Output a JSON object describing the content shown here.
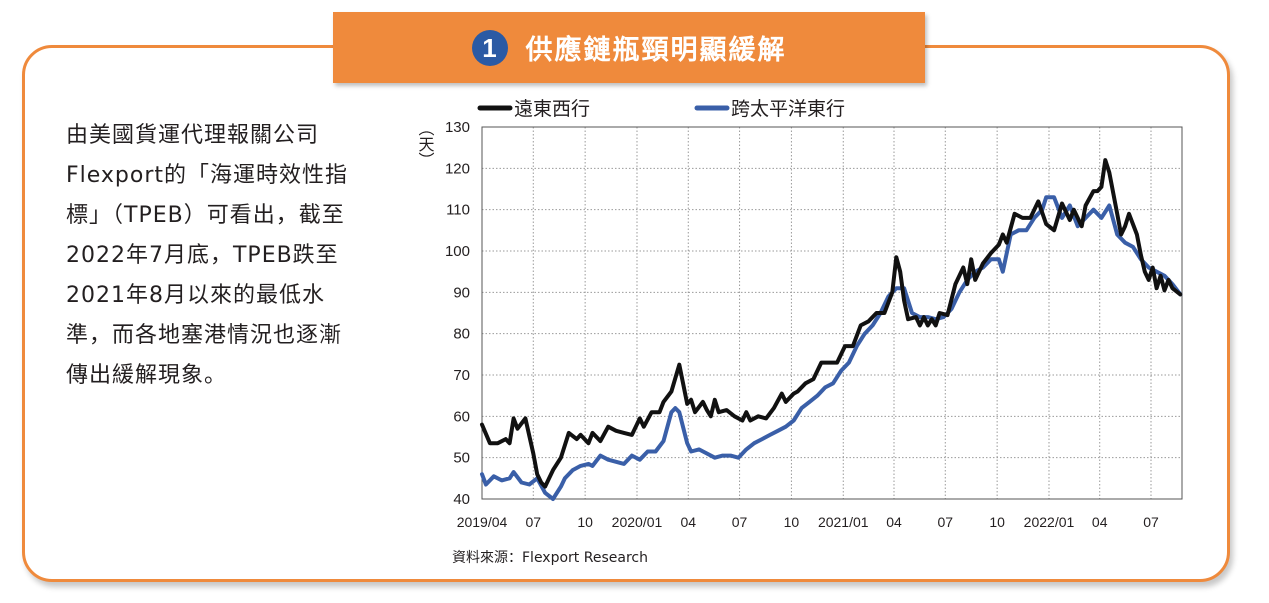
{
  "header": {
    "number": "1",
    "title": "供應鏈瓶頸明顯緩解"
  },
  "article": {
    "text": "由美國貨運代理報關公司Flexport的「海運時效性指標」（TPEB）可看出，截至2022年7月底，TPEB跌至2021年8月以來的最低水準，而各地塞港情況也逐漸傳出緩解現象。"
  },
  "source": "資料來源：Flexport Research",
  "colors": {
    "frame": "#ef8a3c",
    "badge": "#2b5aa4",
    "series_far_east_west": "#111111",
    "series_transpacific_east": "#3a5fa8"
  },
  "chart_data": {
    "type": "line",
    "ylabel": "（天）",
    "ylim": [
      40,
      130
    ],
    "yticks": [
      40,
      50,
      60,
      70,
      80,
      90,
      100,
      110,
      120,
      130
    ],
    "x_range": [
      "2019-04-01",
      "2022-08-25"
    ],
    "x_ticks": [
      {
        "date": "2019-04-01",
        "label": "2019/04"
      },
      {
        "date": "2019-07-01",
        "label": "07"
      },
      {
        "date": "2019-10-01",
        "label": "10"
      },
      {
        "date": "2020-01-01",
        "label": "2020/01"
      },
      {
        "date": "2020-04-01",
        "label": "04"
      },
      {
        "date": "2020-07-01",
        "label": "07"
      },
      {
        "date": "2020-10-01",
        "label": "10"
      },
      {
        "date": "2021-01-01",
        "label": "2021/01"
      },
      {
        "date": "2021-04-01",
        "label": "04"
      },
      {
        "date": "2021-07-01",
        "label": "07"
      },
      {
        "date": "2021-10-01",
        "label": "10"
      },
      {
        "date": "2022-01-01",
        "label": "2022/01"
      },
      {
        "date": "2022-04-01",
        "label": "04"
      },
      {
        "date": "2022-07-01",
        "label": "07"
      }
    ],
    "grid": true,
    "legend_position": "top",
    "series": [
      {
        "name": "遠東西行",
        "color": "#111111",
        "points": [
          [
            "2019-04-01",
            58
          ],
          [
            "2019-04-15",
            53.5
          ],
          [
            "2019-04-29",
            53.5
          ],
          [
            "2019-05-13",
            54.5
          ],
          [
            "2019-05-20",
            53.5
          ],
          [
            "2019-05-27",
            59.5
          ],
          [
            "2019-06-03",
            57
          ],
          [
            "2019-06-17",
            59.5
          ],
          [
            "2019-07-01",
            51
          ],
          [
            "2019-07-08",
            46
          ],
          [
            "2019-07-15",
            44
          ],
          [
            "2019-07-22",
            43
          ],
          [
            "2019-08-05",
            47
          ],
          [
            "2019-08-19",
            50
          ],
          [
            "2019-09-02",
            56
          ],
          [
            "2019-09-16",
            54.5
          ],
          [
            "2019-09-23",
            55.5
          ],
          [
            "2019-10-07",
            53.5
          ],
          [
            "2019-10-14",
            56
          ],
          [
            "2019-10-28",
            54
          ],
          [
            "2019-11-11",
            57.5
          ],
          [
            "2019-11-25",
            56.5
          ],
          [
            "2019-12-09",
            56
          ],
          [
            "2019-12-23",
            55.5
          ],
          [
            "2020-01-06",
            59.5
          ],
          [
            "2020-01-13",
            57.5
          ],
          [
            "2020-01-27",
            61
          ],
          [
            "2020-02-10",
            61
          ],
          [
            "2020-02-17",
            63.5
          ],
          [
            "2020-03-02",
            66
          ],
          [
            "2020-03-16",
            72.5
          ],
          [
            "2020-03-30",
            63
          ],
          [
            "2020-04-06",
            64
          ],
          [
            "2020-04-13",
            61
          ],
          [
            "2020-04-27",
            63.5
          ],
          [
            "2020-05-04",
            61.5
          ],
          [
            "2020-05-11",
            60
          ],
          [
            "2020-05-18",
            64
          ],
          [
            "2020-05-25",
            61
          ],
          [
            "2020-06-08",
            61.5
          ],
          [
            "2020-06-22",
            60
          ],
          [
            "2020-07-06",
            59
          ],
          [
            "2020-07-13",
            61
          ],
          [
            "2020-07-20",
            59
          ],
          [
            "2020-08-03",
            60
          ],
          [
            "2020-08-17",
            59.5
          ],
          [
            "2020-08-31",
            62
          ],
          [
            "2020-09-14",
            65.5
          ],
          [
            "2020-09-21",
            63.5
          ],
          [
            "2020-10-05",
            65.5
          ],
          [
            "2020-10-12",
            66
          ],
          [
            "2020-10-26",
            68
          ],
          [
            "2020-11-09",
            69
          ],
          [
            "2020-11-23",
            73
          ],
          [
            "2020-12-07",
            73
          ],
          [
            "2020-12-21",
            73
          ],
          [
            "2021-01-04",
            77
          ],
          [
            "2021-01-18",
            77
          ],
          [
            "2021-02-01",
            82
          ],
          [
            "2021-02-15",
            83
          ],
          [
            "2021-03-01",
            85
          ],
          [
            "2021-03-15",
            85
          ],
          [
            "2021-03-29",
            90
          ],
          [
            "2021-04-05",
            98.5
          ],
          [
            "2021-04-12",
            95
          ],
          [
            "2021-04-19",
            88
          ],
          [
            "2021-04-26",
            83.5
          ],
          [
            "2021-05-10",
            84
          ],
          [
            "2021-05-17",
            82
          ],
          [
            "2021-05-24",
            84
          ],
          [
            "2021-05-31",
            82
          ],
          [
            "2021-06-07",
            83.5
          ],
          [
            "2021-06-14",
            82
          ],
          [
            "2021-06-21",
            85
          ],
          [
            "2021-07-05",
            84.5
          ],
          [
            "2021-07-19",
            92
          ],
          [
            "2021-08-02",
            96
          ],
          [
            "2021-08-09",
            92
          ],
          [
            "2021-08-16",
            98
          ],
          [
            "2021-08-23",
            93
          ],
          [
            "2021-09-06",
            97
          ],
          [
            "2021-09-20",
            99.5
          ],
          [
            "2021-10-04",
            101.5
          ],
          [
            "2021-10-11",
            104
          ],
          [
            "2021-10-18",
            102
          ],
          [
            "2021-11-01",
            109
          ],
          [
            "2021-11-15",
            108
          ],
          [
            "2021-11-29",
            108
          ],
          [
            "2021-12-13",
            112
          ],
          [
            "2021-12-27",
            106.5
          ],
          [
            "2022-01-10",
            105
          ],
          [
            "2022-01-24",
            111.5
          ],
          [
            "2022-02-07",
            107.5
          ],
          [
            "2022-02-14",
            110
          ],
          [
            "2022-02-28",
            106
          ],
          [
            "2022-03-07",
            111
          ],
          [
            "2022-03-21",
            114.5
          ],
          [
            "2022-03-28",
            114.5
          ],
          [
            "2022-04-04",
            115.5
          ],
          [
            "2022-04-11",
            122
          ],
          [
            "2022-04-18",
            119
          ],
          [
            "2022-05-02",
            109
          ],
          [
            "2022-05-09",
            104
          ],
          [
            "2022-05-16",
            106
          ],
          [
            "2022-05-23",
            109
          ],
          [
            "2022-06-06",
            104
          ],
          [
            "2022-06-13",
            99
          ],
          [
            "2022-06-20",
            95
          ],
          [
            "2022-06-27",
            93
          ],
          [
            "2022-07-04",
            96
          ],
          [
            "2022-07-11",
            91
          ],
          [
            "2022-07-18",
            94
          ],
          [
            "2022-07-25",
            90.5
          ],
          [
            "2022-08-01",
            93
          ],
          [
            "2022-08-08",
            91
          ],
          [
            "2022-08-22",
            89.5
          ]
        ]
      },
      {
        "name": "跨太平洋東行",
        "color": "#3a5fa8",
        "points": [
          [
            "2019-04-01",
            46
          ],
          [
            "2019-04-08",
            43.5
          ],
          [
            "2019-04-22",
            45.5
          ],
          [
            "2019-05-06",
            44.5
          ],
          [
            "2019-05-20",
            45
          ],
          [
            "2019-05-27",
            46.5
          ],
          [
            "2019-06-10",
            44
          ],
          [
            "2019-06-24",
            43.5
          ],
          [
            "2019-07-08",
            45
          ],
          [
            "2019-07-22",
            41.5
          ],
          [
            "2019-08-05",
            40
          ],
          [
            "2019-08-19",
            43
          ],
          [
            "2019-08-26",
            45
          ],
          [
            "2019-09-09",
            47
          ],
          [
            "2019-09-23",
            48
          ],
          [
            "2019-10-07",
            48.5
          ],
          [
            "2019-10-14",
            48
          ],
          [
            "2019-10-28",
            50.5
          ],
          [
            "2019-11-11",
            49.5
          ],
          [
            "2019-11-25",
            49
          ],
          [
            "2019-12-09",
            48.5
          ],
          [
            "2019-12-23",
            50.5
          ],
          [
            "2020-01-06",
            49.5
          ],
          [
            "2020-01-20",
            51.5
          ],
          [
            "2020-02-03",
            51.5
          ],
          [
            "2020-02-17",
            54
          ],
          [
            "2020-03-02",
            61
          ],
          [
            "2020-03-09",
            62
          ],
          [
            "2020-03-16",
            61
          ],
          [
            "2020-03-30",
            53.5
          ],
          [
            "2020-04-06",
            51.5
          ],
          [
            "2020-04-20",
            52
          ],
          [
            "2020-05-04",
            51
          ],
          [
            "2020-05-18",
            50
          ],
          [
            "2020-06-01",
            50.5
          ],
          [
            "2020-06-15",
            50.5
          ],
          [
            "2020-06-29",
            50
          ],
          [
            "2020-07-13",
            52
          ],
          [
            "2020-07-27",
            53.5
          ],
          [
            "2020-08-10",
            54.5
          ],
          [
            "2020-08-24",
            55.5
          ],
          [
            "2020-09-07",
            56.5
          ],
          [
            "2020-09-21",
            57.5
          ],
          [
            "2020-10-05",
            59
          ],
          [
            "2020-10-19",
            62
          ],
          [
            "2020-11-02",
            63.5
          ],
          [
            "2020-11-16",
            65
          ],
          [
            "2020-11-30",
            67
          ],
          [
            "2020-12-14",
            68
          ],
          [
            "2020-12-28",
            71
          ],
          [
            "2021-01-11",
            73
          ],
          [
            "2021-01-25",
            77
          ],
          [
            "2021-02-08",
            80
          ],
          [
            "2021-02-22",
            82
          ],
          [
            "2021-03-08",
            85
          ],
          [
            "2021-03-22",
            89
          ],
          [
            "2021-04-05",
            91
          ],
          [
            "2021-04-19",
            91
          ],
          [
            "2021-05-03",
            85
          ],
          [
            "2021-05-17",
            84
          ],
          [
            "2021-05-31",
            84
          ],
          [
            "2021-06-14",
            83.5
          ],
          [
            "2021-06-28",
            84
          ],
          [
            "2021-07-12",
            86
          ],
          [
            "2021-07-26",
            90
          ],
          [
            "2021-08-09",
            93
          ],
          [
            "2021-08-23",
            95
          ],
          [
            "2021-09-06",
            96
          ],
          [
            "2021-09-20",
            98
          ],
          [
            "2021-10-04",
            98
          ],
          [
            "2021-10-11",
            95
          ],
          [
            "2021-10-25",
            104
          ],
          [
            "2021-11-08",
            105
          ],
          [
            "2021-11-22",
            105
          ],
          [
            "2021-12-06",
            108
          ],
          [
            "2021-12-20",
            110
          ],
          [
            "2021-12-27",
            113
          ],
          [
            "2022-01-10",
            113
          ],
          [
            "2022-01-24",
            108
          ],
          [
            "2022-02-07",
            111
          ],
          [
            "2022-02-21",
            106
          ],
          [
            "2022-03-07",
            108
          ],
          [
            "2022-03-21",
            110
          ],
          [
            "2022-04-04",
            108
          ],
          [
            "2022-04-18",
            111
          ],
          [
            "2022-05-02",
            104
          ],
          [
            "2022-05-16",
            102
          ],
          [
            "2022-05-30",
            101
          ],
          [
            "2022-06-13",
            98
          ],
          [
            "2022-06-27",
            96
          ],
          [
            "2022-07-11",
            95
          ],
          [
            "2022-07-25",
            94
          ],
          [
            "2022-08-08",
            92
          ],
          [
            "2022-08-22",
            89.5
          ]
        ]
      }
    ]
  }
}
